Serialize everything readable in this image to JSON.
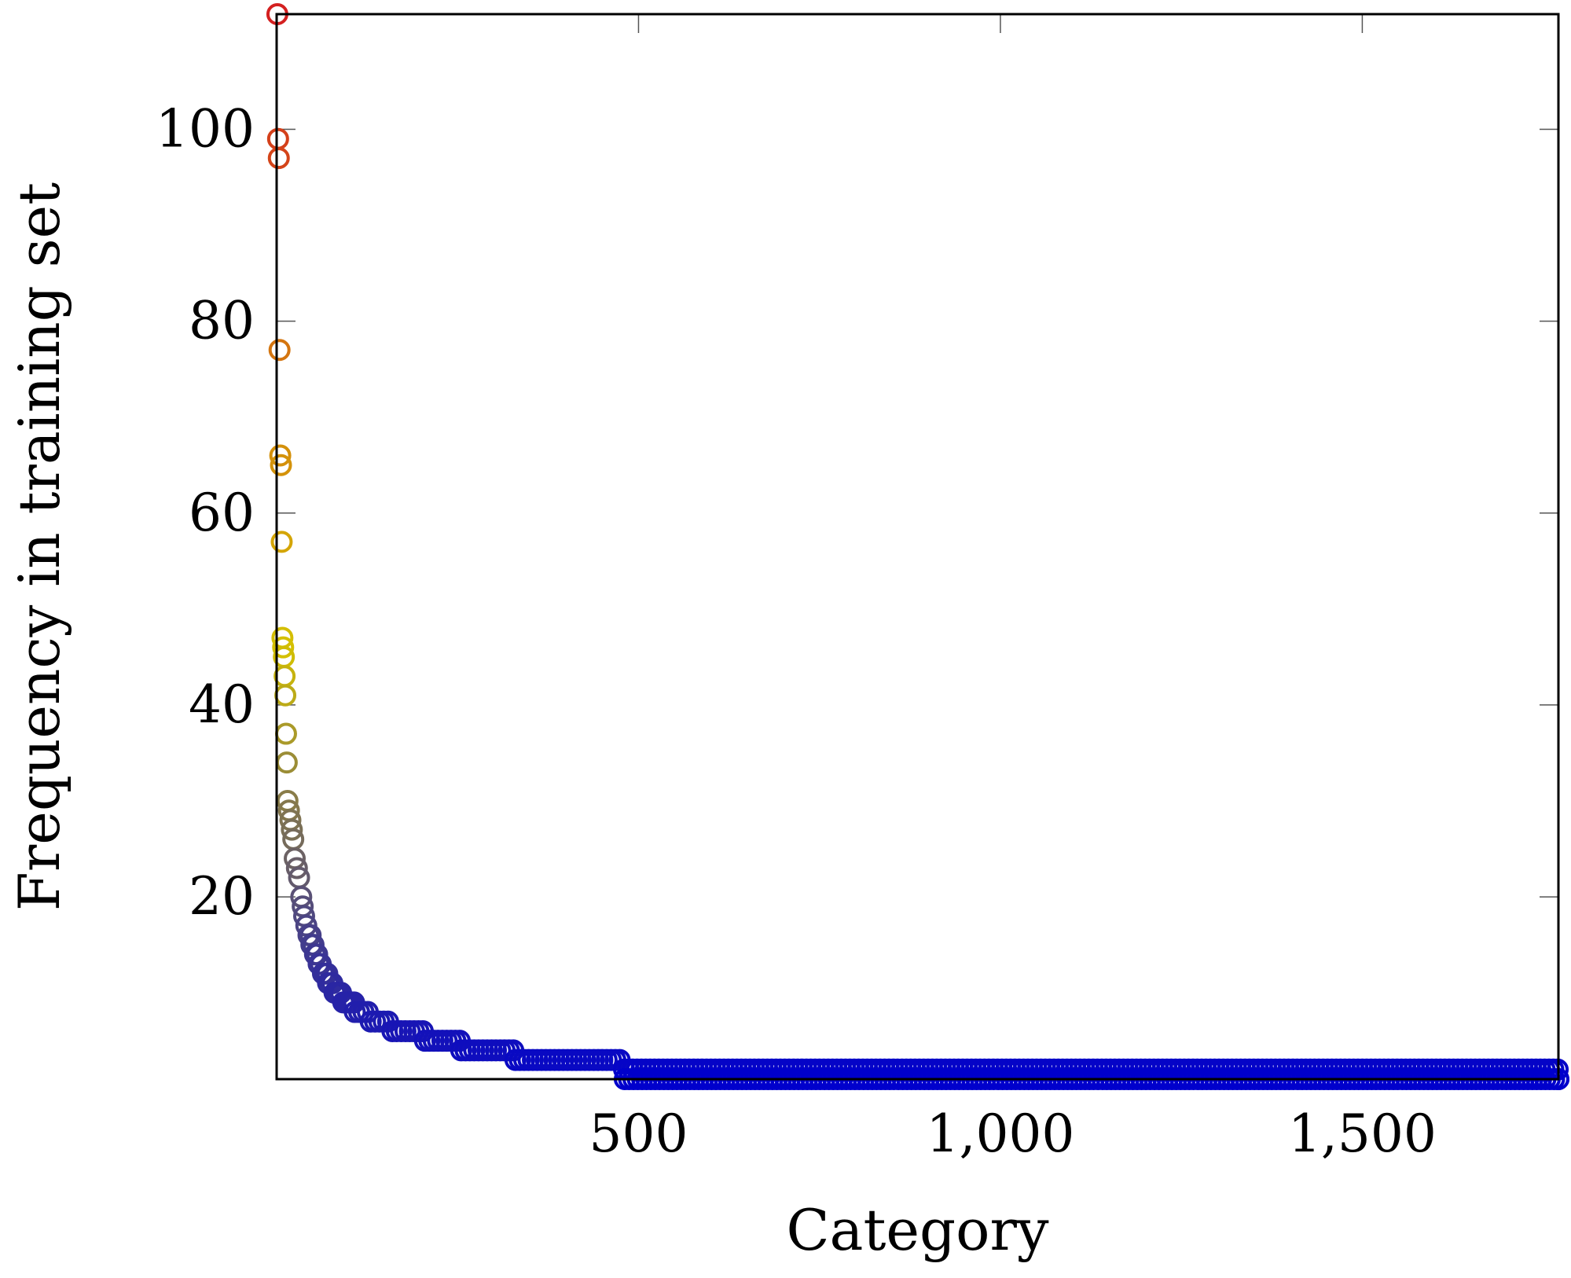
{
  "chart_data": {
    "type": "scatter",
    "title": "",
    "xlabel": "Category",
    "ylabel": "Frequency in training set",
    "xlim": [
      0,
      1771
    ],
    "ylim": [
      1,
      112
    ],
    "xticks": [
      500,
      1000,
      1500
    ],
    "xtick_labels": [
      "500",
      "1,000",
      "1,500"
    ],
    "yticks": [
      20,
      40,
      60,
      80,
      100
    ],
    "ytick_labels": [
      "20",
      "40",
      "60",
      "80",
      "100"
    ],
    "grid": false,
    "legend": "none",
    "marker": "open-circle",
    "colormap": {
      "min_color": "#0000cc",
      "mid_color": "#d4c000",
      "max_color": "#d42020",
      "mid_value": 46
    },
    "points": [
      [
        1,
        112
      ],
      [
        2,
        99
      ],
      [
        3,
        97
      ],
      [
        4,
        77
      ],
      [
        5,
        66
      ],
      [
        6,
        65
      ],
      [
        7,
        57
      ],
      [
        8,
        47
      ],
      [
        9,
        46
      ],
      [
        10,
        45
      ],
      [
        11,
        43
      ],
      [
        12,
        41
      ],
      [
        13,
        37
      ],
      [
        14,
        34
      ],
      [
        15,
        30
      ],
      [
        17,
        29
      ],
      [
        19,
        28
      ],
      [
        21,
        27
      ],
      [
        23,
        26
      ],
      [
        25,
        24
      ],
      [
        28,
        23
      ],
      [
        31,
        22
      ],
      [
        34,
        20
      ],
      [
        36,
        19
      ],
      [
        38,
        18
      ],
      [
        41,
        17
      ],
      [
        44,
        16
      ],
      [
        48,
        15
      ],
      [
        53,
        14
      ],
      [
        58,
        13
      ],
      [
        64,
        12
      ],
      [
        71,
        11
      ],
      [
        80,
        10
      ],
      [
        92,
        9
      ],
      [
        108,
        8
      ],
      [
        130,
        7
      ],
      [
        160,
        6
      ],
      [
        205,
        5
      ],
      [
        255,
        4
      ],
      [
        330,
        3
      ],
      [
        480,
        2
      ],
      [
        1771,
        1
      ]
    ]
  }
}
